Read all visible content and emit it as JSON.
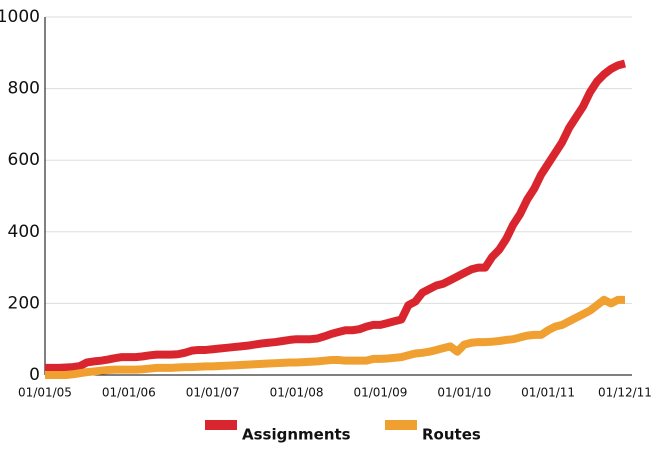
{
  "chart_data": {
    "type": "line",
    "categories": [
      "01/01/05",
      null,
      null,
      null,
      null,
      null,
      null,
      null,
      null,
      null,
      null,
      null,
      "01/01/06",
      null,
      null,
      null,
      null,
      null,
      null,
      null,
      null,
      null,
      null,
      null,
      "01/01/07",
      null,
      null,
      null,
      null,
      null,
      null,
      null,
      null,
      null,
      null,
      null,
      "01/01/08",
      null,
      null,
      null,
      null,
      null,
      null,
      null,
      null,
      null,
      null,
      null,
      "01/01/09",
      null,
      null,
      null,
      null,
      null,
      null,
      null,
      null,
      null,
      null,
      null,
      "01/01/10",
      null,
      null,
      null,
      null,
      null,
      null,
      null,
      null,
      null,
      null,
      null,
      "01/01/11",
      null,
      null,
      null,
      null,
      null,
      null,
      null,
      null,
      null,
      null,
      "01/12/11"
    ],
    "series": [
      {
        "name": "Assignments",
        "color": "#d9262e",
        "values": [
          20,
          20,
          20,
          21,
          22,
          25,
          35,
          38,
          40,
          43,
          47,
          50,
          50,
          50,
          52,
          55,
          57,
          57,
          57,
          58,
          62,
          68,
          70,
          70,
          72,
          74,
          76,
          78,
          80,
          82,
          85,
          88,
          90,
          92,
          95,
          98,
          100,
          100,
          100,
          102,
          108,
          115,
          120,
          125,
          125,
          128,
          135,
          140,
          140,
          145,
          150,
          155,
          195,
          205,
          230,
          240,
          250,
          255,
          265,
          275,
          285,
          295,
          300,
          300,
          330,
          350,
          380,
          420,
          450,
          490,
          520,
          560,
          590,
          620,
          650,
          690,
          720,
          750,
          790,
          820,
          840,
          855,
          865,
          870
        ]
      },
      {
        "name": "Routes",
        "color": "#f0a030",
        "values": [
          0,
          0,
          0,
          0,
          2,
          5,
          8,
          10,
          12,
          14,
          15,
          15,
          15,
          15,
          16,
          18,
          20,
          20,
          20,
          21,
          22,
          22,
          23,
          24,
          24,
          25,
          26,
          27,
          28,
          29,
          30,
          31,
          32,
          33,
          34,
          35,
          35,
          36,
          37,
          38,
          40,
          42,
          42,
          40,
          40,
          40,
          40,
          45,
          45,
          46,
          48,
          50,
          55,
          60,
          62,
          65,
          70,
          75,
          80,
          65,
          85,
          90,
          92,
          92,
          93,
          95,
          98,
          100,
          105,
          110,
          112,
          112,
          125,
          135,
          140,
          150,
          160,
          170,
          180,
          195,
          210,
          200,
          210,
          210
        ]
      }
    ],
    "ylim": [
      0,
      1000
    ],
    "yticks": [
      0,
      200,
      400,
      600,
      800,
      1000
    ],
    "grid": true,
    "legend": "bottom"
  }
}
